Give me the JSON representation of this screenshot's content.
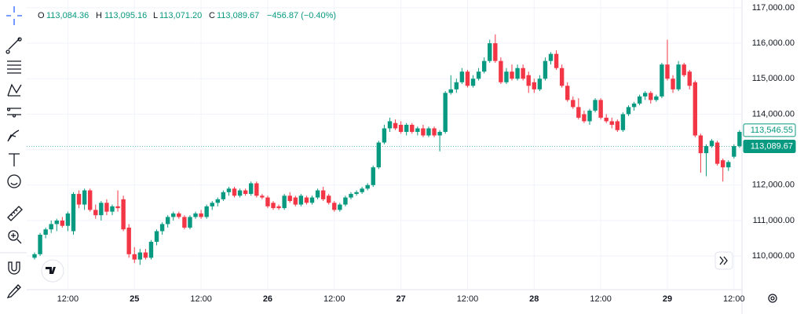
{
  "chart_data": {
    "type": "candlestick",
    "header": {
      "open_label": "O",
      "open": "113,084.36",
      "high_label": "H",
      "high": "113,095.16",
      "low_label": "L",
      "low": "113,071.20",
      "close_label": "C",
      "close": "113,089.67",
      "change": "−456.87 (−0.40%)"
    },
    "up_color": "#089981",
    "down_color": "#f23645",
    "grid": true,
    "ylim": [
      109050,
      117220
    ],
    "yticks": [
      {
        "value": 110000,
        "label": "110,000.00"
      },
      {
        "value": 111000,
        "label": "111,000.00"
      },
      {
        "value": 112000,
        "label": "112,000.00"
      },
      {
        "value": 113000,
        "label": "113,000.00"
      },
      {
        "value": 114000,
        "label": "114,000.00"
      },
      {
        "value": 115000,
        "label": "115,000.00"
      },
      {
        "value": 116000,
        "label": "116,000.00"
      },
      {
        "value": 117000,
        "label": "117,000.00"
      }
    ],
    "xticks": [
      {
        "value": 6,
        "label": "12:00"
      },
      {
        "value": 18,
        "label": "25"
      },
      {
        "value": 30,
        "label": "12:00"
      },
      {
        "value": 42,
        "label": "26"
      },
      {
        "value": 54,
        "label": "12:00"
      },
      {
        "value": 66,
        "label": "27"
      },
      {
        "value": 78,
        "label": "12:00"
      },
      {
        "value": 90,
        "label": "28"
      },
      {
        "value": 102,
        "label": "12:00"
      },
      {
        "value": 114,
        "label": "29"
      },
      {
        "value": 126,
        "label": "12:00"
      }
    ],
    "price_labels": [
      {
        "value": 113546.55,
        "label": "113,546.55"
      },
      {
        "value": 113089.67,
        "label": "113,089.67"
      }
    ],
    "ohlc": [
      [
        109950,
        110100,
        109900,
        110050
      ],
      [
        110050,
        110650,
        110000,
        110600
      ],
      [
        110600,
        110800,
        110500,
        110750
      ],
      [
        110750,
        111000,
        110650,
        110900
      ],
      [
        110900,
        111050,
        110700,
        111000
      ],
      [
        111000,
        111100,
        110800,
        110850
      ],
      [
        110850,
        111250,
        110700,
        111200
      ],
      [
        110700,
        111800,
        110600,
        111750
      ],
      [
        111750,
        111850,
        111350,
        111450
      ],
      [
        111450,
        111900,
        111300,
        111850
      ],
      [
        111850,
        111900,
        111250,
        111300
      ],
      [
        111300,
        111450,
        111050,
        111150
      ],
      [
        111150,
        111550,
        111000,
        111500
      ],
      [
        111500,
        111600,
        111150,
        111250
      ],
      [
        111250,
        111450,
        111150,
        111400
      ],
      [
        111400,
        111850,
        111250,
        111350
      ],
      [
        111600,
        111700,
        110700,
        110750
      ],
      [
        110800,
        110900,
        109950,
        110050
      ],
      [
        110050,
        110250,
        109800,
        109900
      ],
      [
        109900,
        110200,
        109750,
        110100
      ],
      [
        110100,
        110200,
        109900,
        109950
      ],
      [
        109950,
        110450,
        109900,
        110400
      ],
      [
        110400,
        110750,
        110300,
        110700
      ],
      [
        110700,
        110950,
        110600,
        110900
      ],
      [
        110900,
        111150,
        110800,
        111100
      ],
      [
        111100,
        111250,
        111000,
        111200
      ],
      [
        111200,
        111250,
        111050,
        111100
      ],
      [
        111100,
        111150,
        110750,
        110800
      ],
      [
        110800,
        111150,
        110750,
        111100
      ],
      [
        111100,
        111250,
        111050,
        111200
      ],
      [
        111200,
        111300,
        111050,
        111100
      ],
      [
        111100,
        111450,
        111050,
        111400
      ],
      [
        111400,
        111550,
        111300,
        111500
      ],
      [
        111500,
        111650,
        111400,
        111600
      ],
      [
        111600,
        111850,
        111550,
        111800
      ],
      [
        111800,
        111950,
        111700,
        111900
      ],
      [
        111900,
        111950,
        111650,
        111700
      ],
      [
        111700,
        111900,
        111650,
        111850
      ],
      [
        111850,
        111900,
        111700,
        111750
      ],
      [
        111750,
        112100,
        111700,
        112050
      ],
      [
        112050,
        112100,
        111650,
        111700
      ],
      [
        111700,
        111750,
        111600,
        111650
      ],
      [
        111650,
        111700,
        111350,
        111400
      ],
      [
        111500,
        111550,
        111300,
        111350
      ],
      [
        111400,
        111450,
        111300,
        111350
      ],
      [
        111350,
        111750,
        111300,
        111700
      ],
      [
        111700,
        111800,
        111500,
        111550
      ],
      [
        111650,
        111700,
        111400,
        111450
      ],
      [
        111450,
        111750,
        111400,
        111700
      ],
      [
        111650,
        111700,
        111450,
        111500
      ],
      [
        111500,
        111700,
        111450,
        111650
      ],
      [
        111650,
        111900,
        111600,
        111850
      ],
      [
        111850,
        111950,
        111550,
        111600
      ],
      [
        111700,
        111750,
        111450,
        111500
      ],
      [
        111500,
        111550,
        111250,
        111300
      ],
      [
        111300,
        111500,
        111250,
        111450
      ],
      [
        111450,
        111700,
        111400,
        111650
      ],
      [
        111650,
        111800,
        111600,
        111750
      ],
      [
        111750,
        111850,
        111700,
        111800
      ],
      [
        111800,
        111950,
        111750,
        111900
      ],
      [
        111900,
        112050,
        111850,
        112000
      ],
      [
        112000,
        112550,
        111950,
        112500
      ],
      [
        112500,
        113250,
        112450,
        113200
      ],
      [
        113200,
        113700,
        113150,
        113600
      ],
      [
        113600,
        113900,
        113500,
        113800
      ],
      [
        113750,
        113850,
        113550,
        113600
      ],
      [
        113700,
        113800,
        113450,
        113500
      ],
      [
        113500,
        113750,
        113400,
        113700
      ],
      [
        113700,
        113750,
        113450,
        113500
      ],
      [
        113500,
        113650,
        113400,
        113600
      ],
      [
        113600,
        113700,
        113350,
        113400
      ],
      [
        113400,
        113650,
        113350,
        113600
      ],
      [
        113600,
        113650,
        113350,
        113400
      ],
      [
        113400,
        113550,
        112950,
        113500
      ],
      [
        113500,
        114650,
        113450,
        114600
      ],
      [
        114600,
        115100,
        114550,
        114700
      ],
      [
        114700,
        115000,
        114600,
        114900
      ],
      [
        114900,
        115300,
        114850,
        115200
      ],
      [
        115200,
        115250,
        114750,
        114800
      ],
      [
        114800,
        115100,
        114750,
        115000
      ],
      [
        115000,
        115300,
        114950,
        115200
      ],
      [
        115200,
        115600,
        115150,
        115500
      ],
      [
        115500,
        116100,
        115450,
        116000
      ],
      [
        116000,
        116250,
        115450,
        115500
      ],
      [
        115500,
        115600,
        114850,
        114900
      ],
      [
        114900,
        115300,
        114850,
        115200
      ],
      [
        115200,
        115400,
        114950,
        115000
      ],
      [
        115000,
        115400,
        114950,
        115300
      ],
      [
        115300,
        115400,
        114950,
        115000
      ],
      [
        115100,
        115200,
        114600,
        114800
      ],
      [
        114900,
        115000,
        114600,
        114700
      ],
      [
        114700,
        115100,
        114650,
        115000
      ],
      [
        115000,
        115600,
        114950,
        115500
      ],
      [
        115500,
        115750,
        115400,
        115700
      ],
      [
        115700,
        115800,
        115250,
        115300
      ],
      [
        115300,
        115400,
        114750,
        114800
      ],
      [
        114800,
        114900,
        114350,
        114400
      ],
      [
        114400,
        114500,
        114150,
        114200
      ],
      [
        114200,
        114450,
        113850,
        113900
      ],
      [
        114000,
        114100,
        113750,
        113800
      ],
      [
        113800,
        114150,
        113700,
        114100
      ],
      [
        114100,
        114450,
        114050,
        114400
      ],
      [
        114400,
        114450,
        113850,
        113900
      ],
      [
        113900,
        114000,
        113750,
        113800
      ],
      [
        113800,
        113900,
        113600,
        113700
      ],
      [
        113800,
        113850,
        113500,
        113550
      ],
      [
        113550,
        114050,
        113500,
        114000
      ],
      [
        114000,
        114250,
        113950,
        114200
      ],
      [
        114200,
        114350,
        114100,
        114300
      ],
      [
        114300,
        114550,
        114250,
        114500
      ],
      [
        114500,
        114650,
        114400,
        114600
      ],
      [
        114600,
        114650,
        114300,
        114400
      ],
      [
        114400,
        114550,
        114350,
        114500
      ],
      [
        114500,
        115450,
        114450,
        115400
      ],
      [
        115400,
        116100,
        114950,
        115000
      ],
      [
        115000,
        115100,
        114600,
        114700
      ],
      [
        114700,
        115500,
        114650,
        115400
      ],
      [
        115400,
        115450,
        115050,
        115100
      ],
      [
        115200,
        115250,
        114700,
        114800
      ],
      [
        114900,
        114950,
        113350,
        113400
      ],
      [
        113400,
        113450,
        112350,
        112900
      ],
      [
        112900,
        113150,
        112250,
        113100
      ],
      [
        113100,
        113300,
        113050,
        113250
      ],
      [
        113200,
        113250,
        112550,
        112600
      ],
      [
        112700,
        112750,
        112100,
        112500
      ],
      [
        112500,
        112700,
        112400,
        112650
      ],
      [
        112800,
        113150,
        112750,
        113100
      ],
      [
        113100,
        113550,
        113050,
        113500
      ]
    ]
  }
}
